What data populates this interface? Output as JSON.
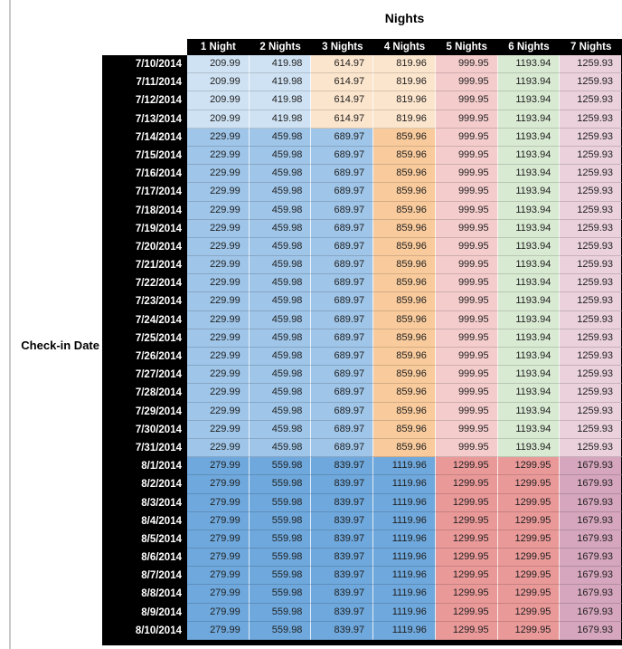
{
  "chart_data": {
    "type": "heatmap",
    "title": "Nights",
    "ylabel": "Check-in Date",
    "columns": [
      "1 Night",
      "2 Nights",
      "3 Nights",
      "4 Nights",
      "5 Nights",
      "6 Nights",
      "7 Nights"
    ],
    "header_bg": "#000000",
    "header_text_color": "#ffffff",
    "row_header_bg": "#000000",
    "row_header_text_color": "#ffffff",
    "value_text_color": "#1f1f1f",
    "page_left_rule_color": "#c9c9c9",
    "group_colors": {
      "jul_early": [
        "#cfe2f3",
        "#cfe2f3",
        "#fce5cd",
        "#fce5cd",
        "#f4cccc",
        "#d9ead3",
        "#ead1dc"
      ],
      "jul_mid": [
        "#9fc5e8",
        "#9fc5e8",
        "#9fc5e8",
        "#f9cb9c",
        "#f4cccc",
        "#d9ead3",
        "#ead1dc"
      ],
      "aug": [
        "#6fa8dc",
        "#6fa8dc",
        "#6fa8dc",
        "#6fa8dc",
        "#ea9999",
        "#ea9999",
        "#d5a6bd"
      ]
    },
    "rows": [
      {
        "date": "7/10/2014",
        "group": "jul_early",
        "values": [
          209.99,
          419.98,
          614.97,
          819.96,
          999.95,
          1193.94,
          1259.93
        ]
      },
      {
        "date": "7/11/2014",
        "group": "jul_early",
        "values": [
          209.99,
          419.98,
          614.97,
          819.96,
          999.95,
          1193.94,
          1259.93
        ]
      },
      {
        "date": "7/12/2014",
        "group": "jul_early",
        "values": [
          209.99,
          419.98,
          614.97,
          819.96,
          999.95,
          1193.94,
          1259.93
        ]
      },
      {
        "date": "7/13/2014",
        "group": "jul_early",
        "values": [
          209.99,
          419.98,
          614.97,
          819.96,
          999.95,
          1193.94,
          1259.93
        ]
      },
      {
        "date": "7/14/2014",
        "group": "jul_mid",
        "values": [
          229.99,
          459.98,
          689.97,
          859.96,
          999.95,
          1193.94,
          1259.93
        ]
      },
      {
        "date": "7/15/2014",
        "group": "jul_mid",
        "values": [
          229.99,
          459.98,
          689.97,
          859.96,
          999.95,
          1193.94,
          1259.93
        ]
      },
      {
        "date": "7/16/2014",
        "group": "jul_mid",
        "values": [
          229.99,
          459.98,
          689.97,
          859.96,
          999.95,
          1193.94,
          1259.93
        ]
      },
      {
        "date": "7/17/2014",
        "group": "jul_mid",
        "values": [
          229.99,
          459.98,
          689.97,
          859.96,
          999.95,
          1193.94,
          1259.93
        ]
      },
      {
        "date": "7/18/2014",
        "group": "jul_mid",
        "values": [
          229.99,
          459.98,
          689.97,
          859.96,
          999.95,
          1193.94,
          1259.93
        ]
      },
      {
        "date": "7/19/2014",
        "group": "jul_mid",
        "values": [
          229.99,
          459.98,
          689.97,
          859.96,
          999.95,
          1193.94,
          1259.93
        ]
      },
      {
        "date": "7/20/2014",
        "group": "jul_mid",
        "values": [
          229.99,
          459.98,
          689.97,
          859.96,
          999.95,
          1193.94,
          1259.93
        ]
      },
      {
        "date": "7/21/2014",
        "group": "jul_mid",
        "values": [
          229.99,
          459.98,
          689.97,
          859.96,
          999.95,
          1193.94,
          1259.93
        ]
      },
      {
        "date": "7/22/2014",
        "group": "jul_mid",
        "values": [
          229.99,
          459.98,
          689.97,
          859.96,
          999.95,
          1193.94,
          1259.93
        ]
      },
      {
        "date": "7/23/2014",
        "group": "jul_mid",
        "values": [
          229.99,
          459.98,
          689.97,
          859.96,
          999.95,
          1193.94,
          1259.93
        ]
      },
      {
        "date": "7/24/2014",
        "group": "jul_mid",
        "values": [
          229.99,
          459.98,
          689.97,
          859.96,
          999.95,
          1193.94,
          1259.93
        ]
      },
      {
        "date": "7/25/2014",
        "group": "jul_mid",
        "values": [
          229.99,
          459.98,
          689.97,
          859.96,
          999.95,
          1193.94,
          1259.93
        ]
      },
      {
        "date": "7/26/2014",
        "group": "jul_mid",
        "values": [
          229.99,
          459.98,
          689.97,
          859.96,
          999.95,
          1193.94,
          1259.93
        ]
      },
      {
        "date": "7/27/2014",
        "group": "jul_mid",
        "values": [
          229.99,
          459.98,
          689.97,
          859.96,
          999.95,
          1193.94,
          1259.93
        ]
      },
      {
        "date": "7/28/2014",
        "group": "jul_mid",
        "values": [
          229.99,
          459.98,
          689.97,
          859.96,
          999.95,
          1193.94,
          1259.93
        ]
      },
      {
        "date": "7/29/2014",
        "group": "jul_mid",
        "values": [
          229.99,
          459.98,
          689.97,
          859.96,
          999.95,
          1193.94,
          1259.93
        ]
      },
      {
        "date": "7/30/2014",
        "group": "jul_mid",
        "values": [
          229.99,
          459.98,
          689.97,
          859.96,
          999.95,
          1193.94,
          1259.93
        ]
      },
      {
        "date": "7/31/2014",
        "group": "jul_mid",
        "values": [
          229.99,
          459.98,
          689.97,
          859.96,
          999.95,
          1193.94,
          1259.93
        ]
      },
      {
        "date": "8/1/2014",
        "group": "aug",
        "values": [
          279.99,
          559.98,
          839.97,
          1119.96,
          1299.95,
          1299.95,
          1679.93
        ]
      },
      {
        "date": "8/2/2014",
        "group": "aug",
        "values": [
          279.99,
          559.98,
          839.97,
          1119.96,
          1299.95,
          1299.95,
          1679.93
        ]
      },
      {
        "date": "8/3/2014",
        "group": "aug",
        "values": [
          279.99,
          559.98,
          839.97,
          1119.96,
          1299.95,
          1299.95,
          1679.93
        ]
      },
      {
        "date": "8/4/2014",
        "group": "aug",
        "values": [
          279.99,
          559.98,
          839.97,
          1119.96,
          1299.95,
          1299.95,
          1679.93
        ]
      },
      {
        "date": "8/5/2014",
        "group": "aug",
        "values": [
          279.99,
          559.98,
          839.97,
          1119.96,
          1299.95,
          1299.95,
          1679.93
        ]
      },
      {
        "date": "8/6/2014",
        "group": "aug",
        "values": [
          279.99,
          559.98,
          839.97,
          1119.96,
          1299.95,
          1299.95,
          1679.93
        ]
      },
      {
        "date": "8/7/2014",
        "group": "aug",
        "values": [
          279.99,
          559.98,
          839.97,
          1119.96,
          1299.95,
          1299.95,
          1679.93
        ]
      },
      {
        "date": "8/8/2014",
        "group": "aug",
        "values": [
          279.99,
          559.98,
          839.97,
          1119.96,
          1299.95,
          1299.95,
          1679.93
        ]
      },
      {
        "date": "8/9/2014",
        "group": "aug",
        "values": [
          279.99,
          559.98,
          839.97,
          1119.96,
          1299.95,
          1299.95,
          1679.93
        ]
      },
      {
        "date": "8/10/2014",
        "group": "aug",
        "values": [
          279.99,
          559.98,
          839.97,
          1119.96,
          1299.95,
          1299.95,
          1679.93
        ]
      }
    ]
  }
}
